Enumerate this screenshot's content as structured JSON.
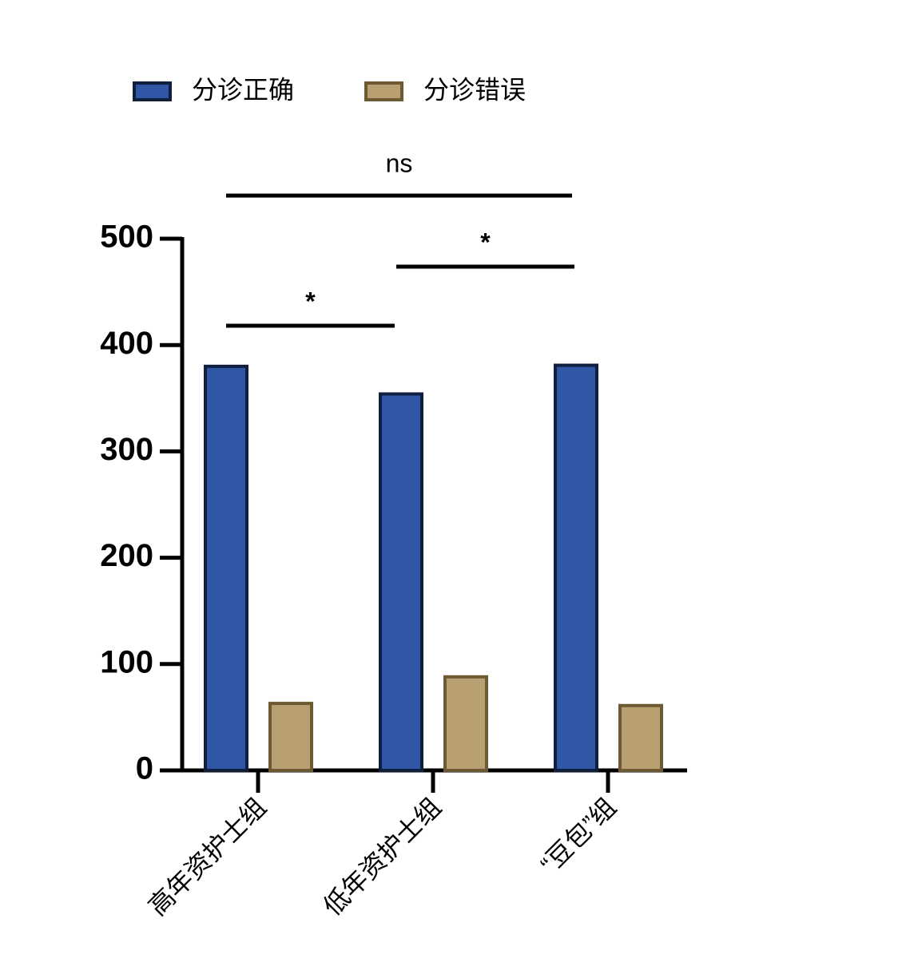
{
  "chart_data": {
    "type": "bar",
    "categories": [
      "高年资护士组",
      "低年资护士组",
      "“豆包”组"
    ],
    "series": [
      {
        "name": "分诊正确",
        "color": "#2f57a5",
        "values": [
          380,
          354,
          381
        ]
      },
      {
        "name": "分诊错误",
        "color": "#b8a072",
        "values": [
          63,
          88,
          61
        ]
      }
    ],
    "ylim": [
      0,
      500
    ],
    "yticks": [
      0,
      100,
      200,
      300,
      400,
      500
    ],
    "annotations": [
      "ns",
      "*",
      "*"
    ]
  }
}
